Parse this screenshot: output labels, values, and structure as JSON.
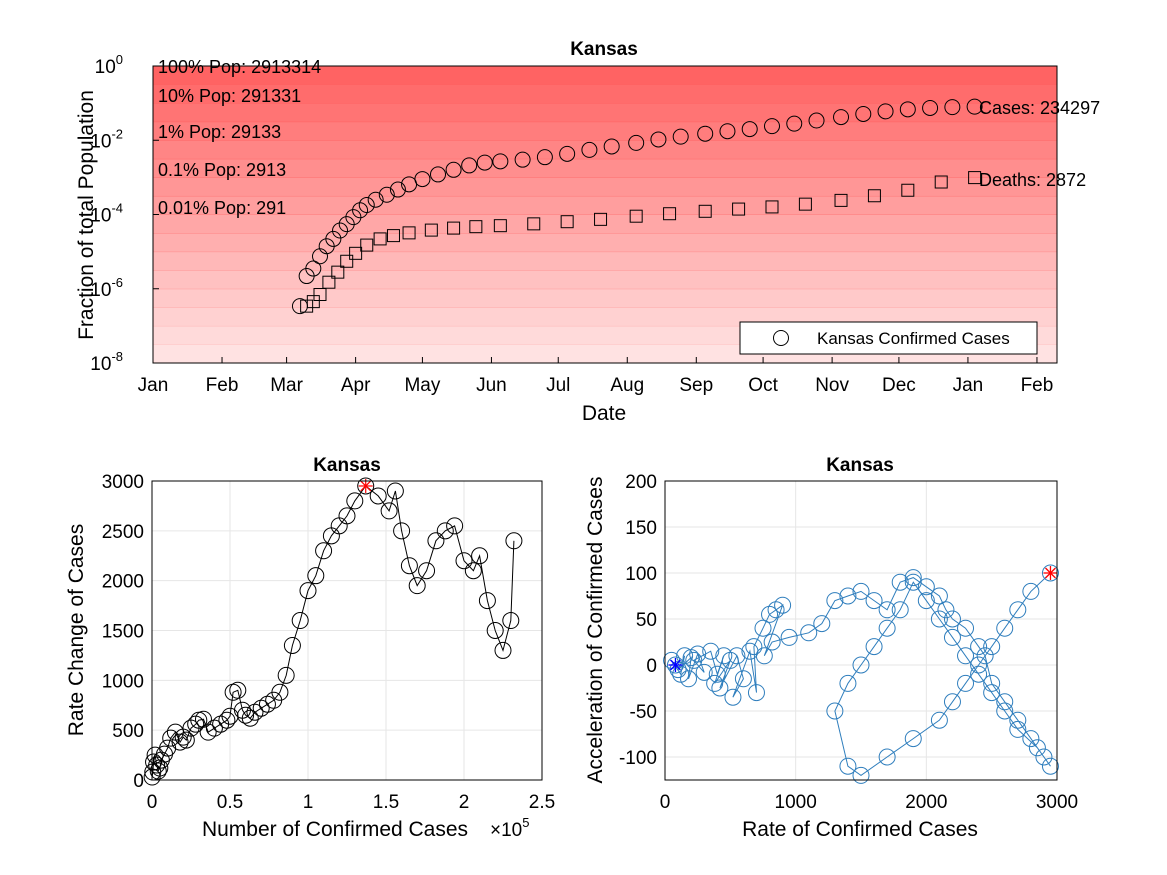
{
  "chart_data": [
    {
      "type": "scatter",
      "title": "Kansas",
      "xlabel": "Date",
      "ylabel": "Fraction of total Population",
      "yscale": "log",
      "ylim": [
        1e-08,
        1
      ],
      "y_tick_labels": [
        "10",
        "10",
        "10",
        "10",
        "10"
      ],
      "y_tick_exponents": [
        "0",
        "-2",
        "-4",
        "-6",
        "-8"
      ],
      "x_tick_labels": [
        "Jan",
        "Feb",
        "Mar",
        "Apr",
        "May",
        "Jun",
        "Jul",
        "Aug",
        "Sep",
        "Oct",
        "Nov",
        "Dec",
        "Jan",
        "Feb"
      ],
      "legend": {
        "position": "bottom-right",
        "entries": [
          "Kansas Confirmed Cases"
        ]
      },
      "background_color": "#ff6060",
      "population_bands": [
        {
          "label": "100% Pop: 2913314",
          "fraction": 1
        },
        {
          "label": "10% Pop: 291331",
          "fraction": 0.1
        },
        {
          "label": "1% Pop: 29133",
          "fraction": 0.01
        },
        {
          "label": "0.1% Pop: 2913",
          "fraction": 0.001
        },
        {
          "label": "0.01% Pop: 291",
          "fraction": 0.0001
        }
      ],
      "end_labels": {
        "cases": "Cases: 234297",
        "deaths": "Deaths: 2872"
      },
      "series": [
        {
          "name": "Kansas Confirmed Cases",
          "marker": "circle",
          "x": [
            "2020-03-07",
            "2020-03-10",
            "2020-03-13",
            "2020-03-16",
            "2020-03-19",
            "2020-03-22",
            "2020-03-25",
            "2020-03-28",
            "2020-03-31",
            "2020-04-03",
            "2020-04-06",
            "2020-04-10",
            "2020-04-15",
            "2020-04-20",
            "2020-04-25",
            "2020-05-01",
            "2020-05-08",
            "2020-05-15",
            "2020-05-22",
            "2020-05-29",
            "2020-06-05",
            "2020-06-15",
            "2020-06-25",
            "2020-07-05",
            "2020-07-15",
            "2020-07-25",
            "2020-08-05",
            "2020-08-15",
            "2020-08-25",
            "2020-09-05",
            "2020-09-15",
            "2020-09-25",
            "2020-10-05",
            "2020-10-15",
            "2020-10-25",
            "2020-11-05",
            "2020-11-15",
            "2020-11-25",
            "2020-12-05",
            "2020-12-15",
            "2020-12-25",
            "2021-01-04"
          ],
          "y": [
            3.4e-07,
            2.2e-06,
            3.5e-06,
            7.5e-06,
            1.4e-05,
            2.2e-05,
            3.7e-05,
            5.5e-05,
            8.5e-05,
            0.00013,
            0.00018,
            0.00025,
            0.00034,
            0.00047,
            0.00065,
            0.0009,
            0.0012,
            0.0016,
            0.0021,
            0.0025,
            0.0027,
            0.003,
            0.0035,
            0.0043,
            0.0055,
            0.0068,
            0.0085,
            0.0105,
            0.0125,
            0.015,
            0.0175,
            0.02,
            0.024,
            0.028,
            0.034,
            0.042,
            0.051,
            0.06,
            0.068,
            0.074,
            0.078,
            0.0804
          ]
        },
        {
          "name": "Deaths",
          "marker": "square",
          "x": [
            "2020-03-10",
            "2020-03-13",
            "2020-03-16",
            "2020-03-20",
            "2020-03-24",
            "2020-03-28",
            "2020-04-01",
            "2020-04-06",
            "2020-04-12",
            "2020-04-18",
            "2020-04-25",
            "2020-05-05",
            "2020-05-15",
            "2020-05-25",
            "2020-06-05",
            "2020-06-20",
            "2020-07-05",
            "2020-07-20",
            "2020-08-05",
            "2020-08-20",
            "2020-09-05",
            "2020-09-20",
            "2020-10-05",
            "2020-10-20",
            "2020-11-05",
            "2020-11-20",
            "2020-12-05",
            "2020-12-20",
            "2021-01-04"
          ],
          "y": [
            3.4e-07,
            4.5e-07,
            7e-07,
            1.5e-06,
            2.8e-06,
            5.5e-06,
            9e-06,
            1.5e-05,
            2.2e-05,
            2.7e-05,
            3.2e-05,
            3.8e-05,
            4.3e-05,
            4.7e-05,
            5e-05,
            5.6e-05,
            6.4e-05,
            7.4e-05,
            9e-05,
            0.000105,
            0.000122,
            0.00014,
            0.00016,
            0.00019,
            0.00024,
            0.00032,
            0.00045,
            0.00075,
            0.000986
          ]
        }
      ]
    },
    {
      "type": "line",
      "title": "Kansas",
      "xlabel": "Number of Confirmed Cases",
      "x_multiplier_base": "×10",
      "x_multiplier_exp": "5",
      "ylabel": "Rate Change of Cases",
      "xlim": [
        0,
        2.5
      ],
      "ylim": [
        0,
        3000
      ],
      "x_tick_labels": [
        "0",
        "0.5",
        "1",
        "1.5",
        "2",
        "2.5"
      ],
      "y_tick_labels": [
        "0",
        "500",
        "1000",
        "1500",
        "2000",
        "2500",
        "3000"
      ],
      "highlight_color": "#ff0000",
      "series": [
        {
          "name": "",
          "x": [
            0.001,
            0.005,
            0.01,
            0.02,
            0.03,
            0.04,
            0.05,
            0.06,
            0.08,
            0.1,
            0.12,
            0.15,
            0.18,
            0.2,
            0.22,
            0.25,
            0.28,
            0.3,
            0.33,
            0.36,
            0.4,
            0.44,
            0.48,
            0.5,
            0.52,
            0.55,
            0.58,
            0.6,
            0.63,
            0.66,
            0.7,
            0.74,
            0.78,
            0.82,
            0.86,
            0.9,
            0.95,
            1.0,
            1.05,
            1.1,
            1.15,
            1.2,
            1.25,
            1.3,
            1.37,
            1.45,
            1.52,
            1.56,
            1.6,
            1.65,
            1.7,
            1.76,
            1.82,
            1.88,
            1.94,
            2.0,
            2.06,
            2.1,
            2.15,
            2.2,
            2.25,
            2.3,
            2.32
          ],
          "y": [
            30,
            80,
            180,
            250,
            150,
            90,
            120,
            200,
            260,
            320,
            420,
            480,
            380,
            430,
            400,
            520,
            560,
            600,
            610,
            480,
            520,
            560,
            600,
            640,
            880,
            900,
            700,
            650,
            620,
            680,
            720,
            760,
            800,
            880,
            1050,
            1350,
            1600,
            1900,
            2050,
            2300,
            2450,
            2550,
            2650,
            2800,
            2950,
            2850,
            2700,
            2900,
            2500,
            2150,
            1950,
            2100,
            2400,
            2500,
            2550,
            2200,
            2100,
            2250,
            1800,
            1500,
            1300,
            1600,
            2400
          ]
        }
      ]
    },
    {
      "type": "line",
      "title": "Kansas",
      "xlabel": "Rate of Confirmed Cases",
      "ylabel": "Acceleration of Confirmed Cases",
      "xlim": [
        0,
        3000
      ],
      "ylim": [
        -125,
        200
      ],
      "x_tick_labels": [
        "0",
        "1000",
        "2000",
        "3000"
      ],
      "y_tick_labels": [
        "-100",
        "-50",
        "0",
        "50",
        "100",
        "150",
        "200"
      ],
      "series_color": "#2f7ebd",
      "start_marker_color": "#0000ff",
      "end_marker_color": "#ff0000",
      "series": [
        {
          "name": "",
          "x": [
            80,
            50,
            120,
            150,
            100,
            200,
            180,
            250,
            300,
            220,
            350,
            400,
            450,
            380,
            500,
            420,
            550,
            600,
            520,
            650,
            700,
            680,
            750,
            800,
            850,
            900,
            760,
            820,
            950,
            1100,
            1200,
            1300,
            1400,
            1500,
            1600,
            1700,
            1800,
            1900,
            2000,
            2100,
            2150,
            2200,
            2300,
            2400,
            2450,
            2500,
            2600,
            2700,
            2800,
            2900,
            2950,
            2850,
            2700,
            2600,
            2500,
            2400,
            2300,
            2200,
            2100,
            2000,
            1900,
            1800,
            1700,
            1600,
            1500,
            1400,
            1300,
            1400,
            1500,
            1700,
            1900,
            2100,
            2200,
            2300,
            2400,
            2500,
            2600,
            2700,
            2800,
            2950
          ],
          "y": [
            0,
            5,
            -10,
            10,
            -5,
            8,
            -15,
            12,
            -8,
            5,
            15,
            -10,
            10,
            -20,
            5,
            -25,
            10,
            -15,
            -35,
            15,
            -30,
            20,
            40,
            55,
            60,
            65,
            10,
            25,
            30,
            35,
            45,
            70,
            75,
            80,
            70,
            60,
            90,
            95,
            85,
            75,
            60,
            50,
            40,
            20,
            10,
            -20,
            -40,
            -60,
            -80,
            -100,
            -110,
            -90,
            -70,
            -50,
            -30,
            -10,
            10,
            30,
            50,
            70,
            90,
            60,
            40,
            20,
            0,
            -20,
            -50,
            -110,
            -120,
            -100,
            -80,
            -60,
            -40,
            -20,
            0,
            20,
            40,
            60,
            80,
            100
          ]
        }
      ]
    }
  ]
}
